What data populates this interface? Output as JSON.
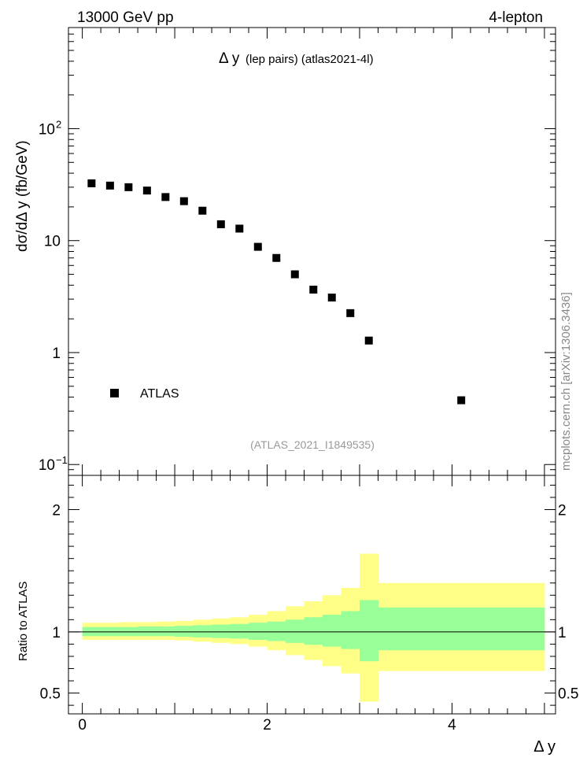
{
  "header": {
    "energy_label": "13000 GeV pp",
    "process_label": "4-lepton"
  },
  "side_label": "mcplots.cern.ch [arXiv:1306.3436]",
  "chart_data": [
    {
      "type": "scatter",
      "title_delta": "Δ y",
      "title_sub": "(lep pairs) (atlas2021-4l)",
      "analysis_id": "(ATLAS_2021_I1849535)",
      "ylabel": "dσ/dΔ y (fb/GeV)",
      "xlabel": "Δ y",
      "yscale": "log",
      "ylim": [
        0.08,
        800
      ],
      "xlim": [
        -0.15,
        5.12
      ],
      "y_ticks": [
        {
          "value": 0.1,
          "base": "10",
          "exp": "−1"
        },
        {
          "value": 1,
          "base": "1",
          "exp": ""
        },
        {
          "value": 10,
          "base": "10",
          "exp": ""
        },
        {
          "value": 100,
          "base": "10",
          "exp": "2"
        }
      ],
      "legend": [
        {
          "name": "ATLAS",
          "marker": "square",
          "position": "lower-left"
        }
      ],
      "series": [
        {
          "name": "ATLAS",
          "x": [
            0.1,
            0.3,
            0.5,
            0.7,
            0.9,
            1.1,
            1.3,
            1.5,
            1.7,
            1.9,
            2.1,
            2.3,
            2.5,
            2.7,
            2.9,
            3.1,
            4.1
          ],
          "y": [
            32.5,
            31.0,
            30.0,
            28.0,
            24.5,
            22.5,
            18.5,
            14.0,
            12.8,
            8.8,
            7.0,
            5.0,
            3.65,
            3.1,
            2.25,
            1.28,
            0.375
          ]
        }
      ]
    },
    {
      "type": "area",
      "ylabel": "Ratio to ATLAS",
      "xlabel": "Δ y",
      "ylim": [
        0.33,
        2.28
      ],
      "xlim": [
        -0.15,
        5.12
      ],
      "x_ticks": [
        0,
        2,
        4
      ],
      "y_ticks": [
        0.5,
        1,
        2
      ],
      "reference_line": 1,
      "bins": [
        0,
        0.2,
        0.4,
        0.6,
        0.8,
        1.0,
        1.2,
        1.4,
        1.6,
        1.8,
        2.0,
        2.2,
        2.4,
        2.6,
        2.8,
        3.0,
        3.2,
        5.0
      ],
      "series": [
        {
          "name": "total uncertainty",
          "color": "#ffff88",
          "low": [
            0.935,
            0.935,
            0.935,
            0.935,
            0.935,
            0.93,
            0.92,
            0.91,
            0.9,
            0.88,
            0.85,
            0.81,
            0.77,
            0.72,
            0.66,
            0.43,
            0.68
          ],
          "high": [
            1.075,
            1.075,
            1.08,
            1.08,
            1.085,
            1.09,
            1.1,
            1.11,
            1.12,
            1.14,
            1.17,
            1.21,
            1.25,
            1.3,
            1.36,
            1.64,
            1.4
          ]
        },
        {
          "name": "statistical uncertainty",
          "color": "#99ff99",
          "low": [
            0.965,
            0.965,
            0.965,
            0.965,
            0.965,
            0.96,
            0.955,
            0.95,
            0.945,
            0.935,
            0.925,
            0.91,
            0.895,
            0.88,
            0.86,
            0.76,
            0.85
          ],
          "high": [
            1.04,
            1.04,
            1.04,
            1.045,
            1.045,
            1.05,
            1.055,
            1.06,
            1.065,
            1.075,
            1.085,
            1.1,
            1.12,
            1.14,
            1.17,
            1.26,
            1.2
          ]
        }
      ]
    }
  ]
}
